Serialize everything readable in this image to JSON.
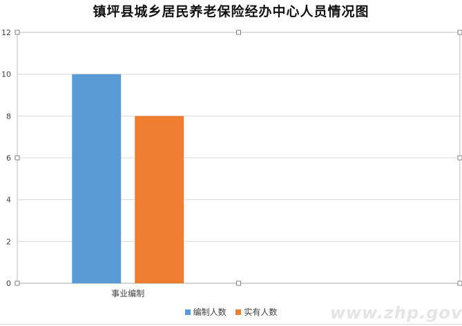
{
  "chart_data": {
    "type": "bar",
    "title": "镇坪县城乡居民养老保险经办中心人员情况图",
    "categories": [
      "事业编制"
    ],
    "series": [
      {
        "name": "编制人数",
        "color": "#5b9bd5",
        "values": [
          10
        ]
      },
      {
        "name": "实有人数",
        "color": "#ed7d31",
        "values": [
          8
        ]
      }
    ],
    "ylim": [
      0,
      12
    ],
    "yticks": [
      "0",
      "2",
      "4",
      "6",
      "8",
      "10",
      "12"
    ],
    "xlabel": "",
    "ylabel": "",
    "grid": true,
    "legend_position": "bottom"
  },
  "watermark": "www.zhp.gov.cn"
}
